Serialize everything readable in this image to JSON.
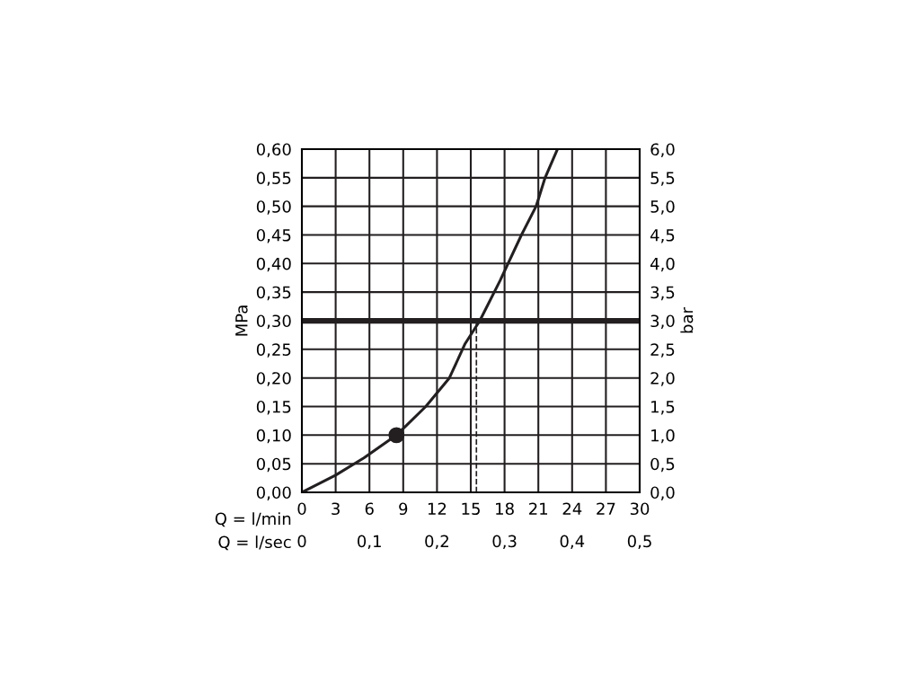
{
  "chart_data": {
    "type": "line",
    "xlabel": "Q = l/min",
    "x2label": "Q = l/sec",
    "ylabel": "MPa",
    "y2label": "bar",
    "xlim": [
      0,
      30
    ],
    "xticks": [
      0,
      3,
      6,
      9,
      12,
      15,
      18,
      21,
      24,
      27,
      30
    ],
    "x2lim": [
      0,
      0.5
    ],
    "x2ticks": [
      0,
      {
        "value": 0.1,
        "label": "0,1"
      },
      {
        "value": 0.2,
        "label": "0,2"
      },
      {
        "value": 0.3,
        "label": "0,3"
      },
      {
        "value": 0.4,
        "label": "0,4"
      },
      {
        "value": 0.5,
        "label": "0,5"
      }
    ],
    "ylim": [
      0,
      0.6
    ],
    "yticks": [
      {
        "value": 0,
        "label": "0,00"
      },
      {
        "value": 0.05,
        "label": "0,05"
      },
      {
        "value": 0.1,
        "label": "0,10"
      },
      {
        "value": 0.15,
        "label": "0,15"
      },
      {
        "value": 0.2,
        "label": "0,20"
      },
      {
        "value": 0.25,
        "label": "0,25"
      },
      {
        "value": 0.3,
        "label": "0,30"
      },
      {
        "value": 0.35,
        "label": "0,35"
      },
      {
        "value": 0.4,
        "label": "0,40"
      },
      {
        "value": 0.45,
        "label": "0,45"
      },
      {
        "value": 0.5,
        "label": "0,50"
      },
      {
        "value": 0.55,
        "label": "0,55"
      },
      {
        "value": 0.6,
        "label": "0,60"
      }
    ],
    "y2lim": [
      0,
      6
    ],
    "y2ticks": [
      {
        "value": 0,
        "label": "0,0"
      },
      {
        "value": 0.5,
        "label": "0,5"
      },
      {
        "value": 1,
        "label": "1,0"
      },
      {
        "value": 1.5,
        "label": "1,5"
      },
      {
        "value": 2,
        "label": "2,0"
      },
      {
        "value": 2.5,
        "label": "2,5"
      },
      {
        "value": 3,
        "label": "3,0"
      },
      {
        "value": 3.5,
        "label": "3,5"
      },
      {
        "value": 4,
        "label": "4,0"
      },
      {
        "value": 4.5,
        "label": "4,5"
      },
      {
        "value": 5,
        "label": "5,0"
      },
      {
        "value": 5.5,
        "label": "5,5"
      },
      {
        "value": 6,
        "label": "6,0"
      }
    ],
    "grid": true,
    "series": [
      {
        "color": "#231f20",
        "x": [
          0,
          3,
          5.5,
          8.4,
          11,
          13.1,
          14.5,
          15.8,
          17.6,
          19.5,
          20.8,
          21.6,
          22.7
        ],
        "values": [
          0,
          0.03,
          0.06,
          0.1,
          0.15,
          0.2,
          0.26,
          0.3,
          0.37,
          0.45,
          0.5,
          0.55,
          0.6
        ],
        "marker": "none",
        "line_style": "solid"
      },
      {
        "type": "scatter",
        "color": "#231f20",
        "x": [
          8.4
        ],
        "values": [
          0.1
        ],
        "marker": "circle"
      }
    ],
    "ref_lines": [
      {
        "axis": "y",
        "value": 0.3,
        "color": "#231f20",
        "line_style": "solid"
      },
      {
        "axis": "x",
        "value": 15.5,
        "color": "#231f20",
        "line_style": "dashed"
      }
    ]
  }
}
